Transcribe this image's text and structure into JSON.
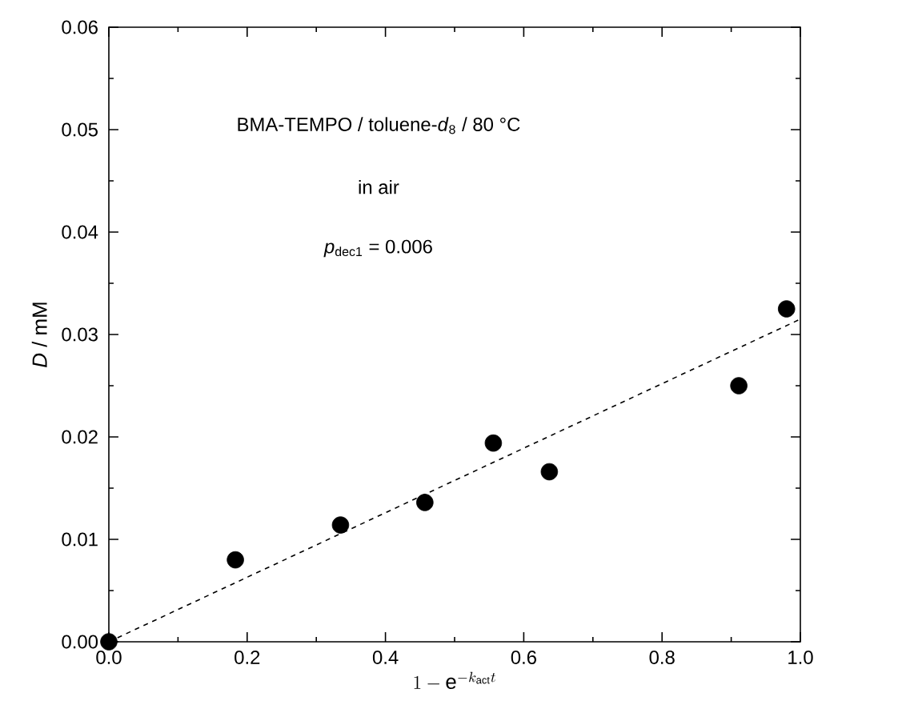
{
  "chart_data": {
    "type": "scatter",
    "xlabel": "1 - \\mathrm{e}^{-k_{\\mathrm{act}}t}",
    "ylabel": "*D* / mM",
    "annotations": [
      "BMA-TEMPO / toluene-*d*$_{8}$ / 80 °C",
      "in air",
      "*p*$_{dec1}$ = 0.006"
    ],
    "series": [
      {
        "color": "#000000",
        "marker": "circle",
        "x": [
          0,
          0.183,
          0.335,
          0.457,
          0.556,
          0.637,
          0.911,
          0.98
        ],
        "values": [
          0,
          0.008,
          0.0114,
          0.0136,
          0.0194,
          0.0166,
          0.025,
          0.0325
        ]
      },
      {
        "type": "line",
        "color": "#000000",
        "line_style": "dashed",
        "marker": "none",
        "x": [
          0,
          1.0
        ],
        "values": [
          0,
          0.0315
        ]
      }
    ],
    "xlim": [
      0,
      1.0
    ],
    "ylim": [
      0,
      0.06
    ],
    "xticks": [
      {
        "value": 0,
        "label": "0.0"
      },
      0.2,
      0.4,
      0.6,
      0.8,
      {
        "value": 1.0,
        "label": "1.0"
      }
    ],
    "yticks": [
      {
        "value": 0,
        "label": "0.00"
      },
      {
        "value": 0.01,
        "label": "0.01"
      },
      {
        "value": 0.02,
        "label": "0.02"
      },
      {
        "value": 0.03,
        "label": "0.03"
      },
      {
        "value": 0.04,
        "label": "0.04"
      },
      {
        "value": 0.05,
        "label": "0.05"
      },
      {
        "value": 0.06,
        "label": "0.06"
      }
    ],
    "grid": false
  }
}
